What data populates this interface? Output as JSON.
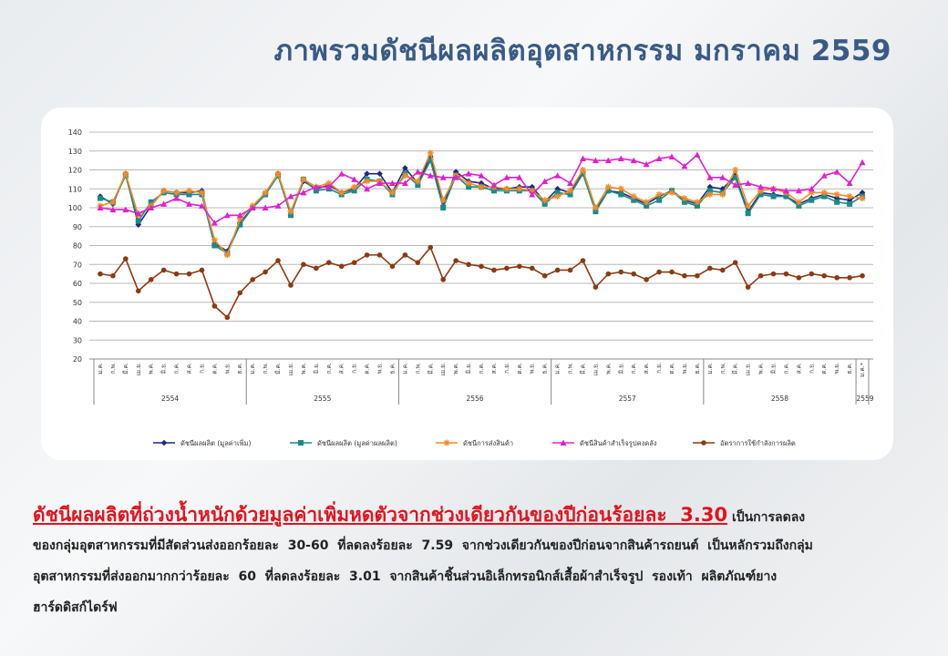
{
  "header": {
    "title": "ภาพรวมดัชนีผลผลิตอุตสาหกรรม  มกราคม  2559"
  },
  "chart_data": {
    "type": "line",
    "categories": [
      "ม.ค.",
      "ก.พ.",
      "มี.ค.",
      "เม.ย.",
      "พ.ค.",
      "มิ.ย.",
      "ก.ค.",
      "ส.ค.",
      "ก.ย.",
      "ต.ค.",
      "พ.ย.",
      "ธ.ค.",
      "ม.ค.",
      "ก.พ.",
      "มี.ค.",
      "เม.ย.",
      "พ.ค.",
      "มิ.ย.",
      "ก.ค.",
      "ส.ค.",
      "ก.ย.",
      "ต.ค.",
      "พ.ย.",
      "ธ.ค.",
      "ม.ค.",
      "ก.พ.",
      "มี.ค.",
      "เม.ย.",
      "พ.ค.",
      "มิ.ย.",
      "ก.ค.",
      "ส.ค.",
      "ก.ย.",
      "ต.ค.",
      "พ.ย.",
      "ธ.ค.",
      "ม.ค.",
      "ก.พ.",
      "มี.ค.",
      "เม.ย.",
      "พ.ค.",
      "มิ.ย.",
      "ก.ค.",
      "ส.ค.",
      "ก.ย.",
      "ต.ค.",
      "พ.ย.",
      "ธ.ค.",
      "ม.ค.",
      "ก.พ.",
      "มี.ค.",
      "เม.ย.",
      "พ.ค.",
      "มิ.ย.",
      "ก.ค.",
      "ส.ค.",
      "ก.ย.",
      "ต.ค.",
      "พ.ย.",
      "ธ.ค.",
      "ม.ค.*"
    ],
    "years": [
      "2554",
      "2555",
      "2556",
      "2557",
      "2558",
      "2559"
    ],
    "ylim": [
      20,
      140
    ],
    "yticks": [
      20,
      30,
      40,
      50,
      60,
      70,
      80,
      90,
      100,
      110,
      120,
      130,
      140
    ],
    "grid": true,
    "series": [
      {
        "name": "ดัชนีผลผลิต (มูลค่าเพิ่ม)",
        "color": "#1f2a78",
        "marker": "diamond",
        "values": [
          106,
          102,
          118,
          91,
          101,
          109,
          108,
          108,
          109,
          81,
          77,
          92,
          100,
          107,
          118,
          97,
          114,
          110,
          112,
          108,
          110,
          118,
          118,
          108,
          121,
          113,
          127,
          101,
          119,
          114,
          113,
          110,
          110,
          111,
          111,
          103,
          110,
          108,
          119,
          99,
          109,
          108,
          105,
          102,
          106,
          109,
          104,
          102,
          111,
          110,
          117,
          98,
          108,
          107,
          106,
          102,
          105,
          107,
          105,
          104,
          108
        ]
      },
      {
        "name": "ดัชนีผลผลิต (มูลค่าผลผลิต)",
        "color": "#1a8a8a",
        "marker": "square",
        "values": [
          105,
          103,
          117,
          93,
          103,
          108,
          107,
          107,
          107,
          80,
          76,
          91,
          100,
          107,
          117,
          96,
          115,
          109,
          110,
          107,
          109,
          115,
          114,
          107,
          118,
          112,
          125,
          100,
          117,
          111,
          111,
          109,
          109,
          109,
          109,
          102,
          108,
          107,
          118,
          98,
          109,
          107,
          104,
          101,
          104,
          109,
          103,
          101,
          109,
          108,
          116,
          97,
          107,
          106,
          106,
          101,
          104,
          106,
          103,
          102,
          106
        ]
      },
      {
        "name": "ดัชนีการส่งสินค้า",
        "color": "#f28c28",
        "marker": "star",
        "values": [
          101,
          103,
          118,
          96,
          101,
          109,
          108,
          109,
          108,
          83,
          75,
          94,
          101,
          108,
          118,
          98,
          115,
          111,
          113,
          108,
          111,
          114,
          114,
          108,
          117,
          114,
          129,
          104,
          117,
          113,
          111,
          111,
          110,
          110,
          109,
          104,
          106,
          109,
          120,
          100,
          111,
          110,
          106,
          103,
          107,
          108,
          105,
          103,
          107,
          107,
          120,
          101,
          109,
          110,
          108,
          103,
          108,
          108,
          107,
          106,
          105
        ]
      },
      {
        "name": "ดัชนีสินค้าสำเร็จรูปคงคลัง",
        "color": "#e020d0",
        "marker": "triangle",
        "values": [
          100,
          99,
          99,
          97,
          100,
          102,
          105,
          102,
          101,
          92,
          96,
          96,
          100,
          100,
          101,
          106,
          108,
          111,
          111,
          118,
          115,
          110,
          113,
          113,
          113,
          119,
          117,
          116,
          116,
          118,
          117,
          112,
          116,
          116,
          107,
          114,
          117,
          113,
          126,
          125,
          125,
          126,
          125,
          123,
          126,
          127,
          122,
          128,
          116,
          116,
          112,
          113,
          111,
          110,
          109,
          109,
          110,
          117,
          119,
          113,
          124
        ]
      },
      {
        "name": "อัตราการใช้กำลังการผลิต",
        "color": "#8b3a12",
        "marker": "circle",
        "values": [
          65,
          64,
          73,
          56,
          62,
          67,
          65,
          65,
          67,
          48,
          42,
          55,
          62,
          66,
          72,
          59,
          70,
          68,
          71,
          69,
          71,
          75,
          75,
          69,
          75,
          71,
          79,
          62,
          72,
          70,
          69,
          67,
          68,
          69,
          68,
          64,
          67,
          67,
          72,
          58,
          65,
          66,
          65,
          62,
          66,
          66,
          64,
          64,
          68,
          67,
          71,
          58,
          64,
          65,
          65,
          63,
          65,
          64,
          63,
          63,
          64
        ]
      }
    ]
  },
  "body": {
    "lead": "ดัชนีผลผลิตที่ถ่วงน้ำหนักด้วยมูลค่าเพิ่มหดตัวจากช่วงเดียวกันของปีก่อนร้อยละ  3.30",
    "lines": [
      "เป็นการลดลง",
      "ของกลุ่มอุตสาหกรรมที่มีสัดส่วนส่งออกร้อยละ  30-60  ที่ลดลงร้อยละ  7.59  จากช่วงเดียวกันของปีก่อนจากสินค้ารถยนต์  เป็นหลักรวมถึงกลุ่ม",
      "อุตสาหกรรมที่ส่งออกมากกว่าร้อยละ  60  ที่ลดลงร้อยละ  3.01  จากสินค้าชิ้นส่วนอิเล็กทรอนิกส์เสื้อผ้าสำเร็จรูป  รองเท้า  ผลิตภัณฑ์ยาง",
      "ฮาร์ดดิสก์ไดร์ฟ"
    ]
  }
}
